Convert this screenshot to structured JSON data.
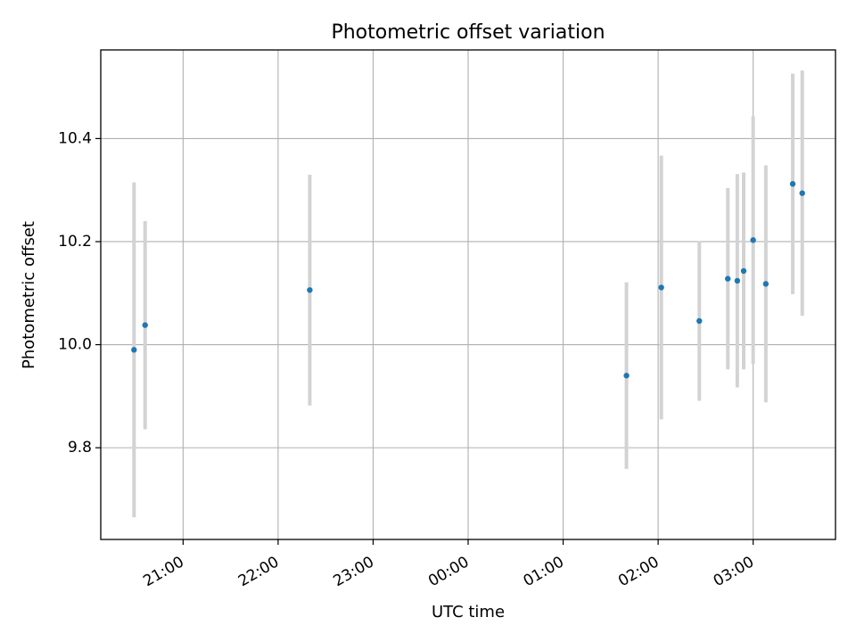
{
  "chart_data": {
    "type": "scatter",
    "title": "Photometric offset variation",
    "xlabel": "UTC time",
    "ylabel": "Photometric offset",
    "grid": true,
    "x_ticks": [
      "21:00",
      "22:00",
      "23:00",
      "00:00",
      "01:00",
      "02:00",
      "03:00"
    ],
    "y_ticks": [
      "9.8",
      "10.0",
      "10.2",
      "10.4"
    ],
    "xlim": [
      "20:08",
      "03:52"
    ],
    "ylim": [
      9.622,
      10.572
    ],
    "colors": {
      "points": "#1f77b4",
      "errorbars": "#d3d3d3",
      "grid": "#b0b0b0"
    },
    "series": [
      {
        "points": [
          {
            "x": "20:29",
            "y": 9.99,
            "err": 0.325
          },
          {
            "x": "20:36",
            "y": 10.038,
            "err": 0.202
          },
          {
            "x": "22:20",
            "y": 10.106,
            "err": 0.224
          },
          {
            "x": "01:40",
            "y": 9.94,
            "err": 0.181
          },
          {
            "x": "02:02",
            "y": 10.111,
            "err": 0.256
          },
          {
            "x": "02:26",
            "y": 10.046,
            "err": 0.155
          },
          {
            "x": "02:44",
            "y": 10.128,
            "err": 0.176
          },
          {
            "x": "02:50",
            "y": 10.124,
            "err": 0.207
          },
          {
            "x": "02:54",
            "y": 10.143,
            "err": 0.191
          },
          {
            "x": "03:00",
            "y": 10.203,
            "err": 0.24
          },
          {
            "x": "03:08",
            "y": 10.118,
            "err": 0.23
          },
          {
            "x": "03:25",
            "y": 10.312,
            "err": 0.214
          },
          {
            "x": "03:31",
            "y": 10.294,
            "err": 0.238
          }
        ]
      }
    ]
  }
}
